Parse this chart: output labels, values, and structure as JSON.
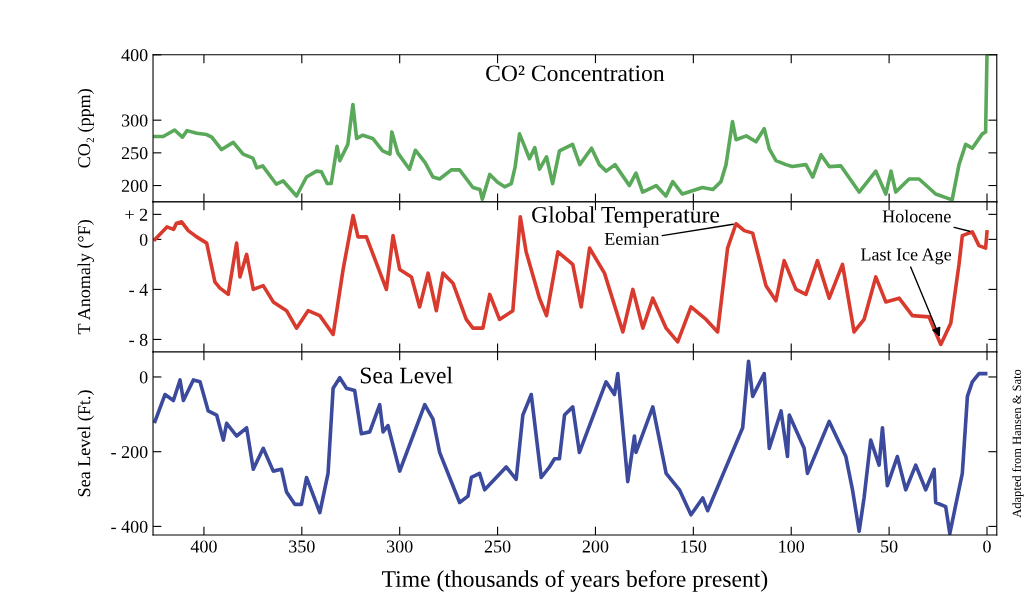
{
  "chart_data": [
    {
      "type": "line",
      "title": "CO² Concentration",
      "ylabel": "CO₂ (ppm)",
      "tick_labels": "y",
      "grid": false,
      "legend": false,
      "xlim": [
        426,
        -5
      ],
      "xticks": [
        400,
        350,
        300,
        250,
        200,
        150,
        100,
        50,
        0
      ],
      "ylim": [
        175,
        400
      ],
      "yticks": [
        200,
        250,
        300,
        400
      ],
      "series": [
        {
          "color": "#5aa85a",
          "x": [
            425,
            420.8,
            415,
            411,
            408.6,
            403.7,
            398.6,
            396,
            391,
            385,
            380,
            375,
            373,
            370,
            363,
            359.5,
            352.7,
            347.6,
            342.5,
            340,
            337,
            335,
            332,
            330.6,
            326.5,
            323.9,
            322,
            318.8,
            313.8,
            308.7,
            305,
            304,
            301,
            295,
            292,
            287,
            283,
            279.6,
            273.6,
            269.4,
            262.6,
            259,
            257.8,
            254,
            250,
            246.4,
            243,
            241,
            238.8,
            236.2,
            233.7,
            231,
            228.6,
            225,
            221.9,
            218.4,
            211.7,
            208,
            202,
            198,
            194.5,
            190,
            182.7,
            179.3,
            175.9,
            169,
            164,
            160.5,
            155.6,
            145.4,
            140,
            135.9,
            133.3,
            130,
            128.2,
            123,
            118,
            113.8,
            111.2,
            107.8,
            102.7,
            99.5,
            92.5,
            89,
            84.8,
            80.6,
            74.6,
            65.3,
            56.8,
            51.7,
            49,
            46.6,
            39.8,
            34.7,
            26.2,
            17.8,
            14.3,
            10.9,
            7.5,
            2.4,
            0.7,
            0
          ],
          "values": [
            275,
            275,
            285,
            274,
            284,
            280,
            278,
            274,
            255,
            266,
            248,
            242,
            227,
            230,
            202,
            207,
            184,
            213,
            222,
            221,
            203,
            203,
            260,
            238,
            263,
            324,
            272,
            277,
            272,
            253,
            248,
            282,
            250,
            225,
            254,
            235,
            213,
            210,
            224,
            224,
            197,
            194,
            179,
            217,
            205,
            198,
            203,
            229,
            279,
            260,
            241,
            258,
            225,
            244,
            203,
            253,
            263,
            232,
            257,
            232,
            222,
            232,
            200,
            219,
            190,
            200,
            184,
            206,
            187,
            197,
            194,
            206,
            232,
            298,
            270,
            276,
            267,
            287,
            256,
            238,
            232,
            229,
            232,
            213,
            247,
            229,
            230,
            190,
            222,
            187,
            222,
            190,
            210,
            210,
            187,
            178,
            232,
            263,
            257,
            279,
            282,
            400
          ]
        }
      ]
    },
    {
      "type": "line",
      "title": "Global Temperature",
      "ylabel": "T Anomaly (°F)",
      "tick_labels": "y",
      "grid": false,
      "legend": false,
      "xlim": [
        426,
        -5
      ],
      "xticks": [
        400,
        350,
        300,
        250,
        200,
        150,
        100,
        50,
        0
      ],
      "ylim": [
        -9,
        3
      ],
      "yticks": [
        {
          "value": 2,
          "label": "+ 2"
        },
        0,
        {
          "value": -4,
          "label": "- 4"
        },
        {
          "value": -8,
          "label": "- 8"
        }
      ],
      "annotations": [
        {
          "text": "Eemian",
          "x": 128.2,
          "y": 1.25
        },
        {
          "text": "Holocene",
          "x": 7.5,
          "y": 0.6
        },
        {
          "text": "Last Ice Age",
          "x": 23.6,
          "y": -8
        }
      ],
      "series": [
        {
          "color": "#d93a2e",
          "x": [
            425,
            418.9,
            415.5,
            414,
            411.4,
            408,
            403.7,
            398.6,
            394.4,
            391.8,
            387.6,
            383.3,
            381.6,
            378.2,
            374.8,
            369.7,
            364.6,
            357.8,
            352.7,
            346.8,
            340.8,
            334,
            328.9,
            323.8,
            321.3,
            317,
            306.8,
            303.4,
            300,
            294,
            289.8,
            285.5,
            281.3,
            277.9,
            272.8,
            266,
            262.6,
            257.5,
            254,
            249,
            242.2,
            238.4,
            235.4,
            228.6,
            225,
            219.2,
            211.6,
            207.3,
            203,
            195.4,
            186,
            180.9,
            175.8,
            170.7,
            163.9,
            158,
            151.2,
            143.5,
            137.6,
            132.5,
            128.2,
            124,
            119.7,
            112.9,
            107.8,
            103.6,
            97.6,
            92.5,
            86.6,
            80.6,
            73.8,
            67.9,
            62.8,
            56.8,
            51.7,
            44.9,
            38.1,
            29.6,
            23.6,
            18.5,
            14.3,
            12.6,
            7.5,
            4.1,
            0.7,
            0
          ],
          "values": [
            0,
            1.0,
            0.8,
            1.3,
            1.4,
            0.7,
            0.2,
            -0.3,
            -3.4,
            -3.9,
            -4.4,
            -0.3,
            -3.0,
            -1.2,
            -4.0,
            -3.7,
            -5.0,
            -5.7,
            -7.1,
            -5.7,
            -6.1,
            -7.6,
            -2.4,
            1.9,
            0.2,
            0.2,
            -4.0,
            0.3,
            -2.4,
            -3.0,
            -5.4,
            -2.7,
            -5.7,
            -2.7,
            -3.5,
            -6.4,
            -7.1,
            -7.1,
            -4.4,
            -6.4,
            -5.7,
            1.8,
            -1.0,
            -4.7,
            -6.1,
            -1.0,
            -2.0,
            -5.4,
            -0.7,
            -2.7,
            -7.4,
            -4.0,
            -7.1,
            -4.7,
            -7.1,
            -8.2,
            -5.4,
            -6.4,
            -7.4,
            -0.7,
            1.25,
            0.7,
            0.5,
            -3.7,
            -4.9,
            -1.7,
            -4.0,
            -4.4,
            -1.7,
            -4.7,
            -2.0,
            -7.4,
            -6.4,
            -3.0,
            -5.0,
            -4.7,
            -6.1,
            -6.2,
            -8.4,
            -6.7,
            -2.0,
            0.3,
            0.6,
            -0.5,
            -0.7,
            0.6
          ]
        }
      ]
    },
    {
      "type": "line",
      "title": "Sea Level",
      "ylabel": "Sea Level (Ft.)",
      "xlabel": "Time (thousands of years before present)",
      "grid": false,
      "legend": false,
      "xlim": [
        426,
        -5
      ],
      "xticks": [
        400,
        350,
        300,
        250,
        200,
        150,
        100,
        50,
        0
      ],
      "ylim": [
        -423,
        67
      ],
      "yticks": [
        0,
        {
          "value": -200,
          "label": "- 200"
        },
        {
          "value": -400,
          "label": "- 400"
        }
      ],
      "annotations": [
        "Adapted from Hansen & Sato"
      ],
      "series": [
        {
          "color": "#3b4a9c",
          "x": [
            425,
            419.9,
            415.6,
            412.2,
            410.5,
            405.4,
            402,
            397.8,
            393.5,
            390.1,
            388.4,
            383.3,
            378.2,
            374.8,
            369.7,
            364.6,
            360.4,
            357.8,
            353.6,
            350.2,
            347.6,
            340.8,
            336.6,
            334,
            330.6,
            327.2,
            323,
            319.6,
            315.3,
            310.2,
            308.5,
            306,
            300,
            287.2,
            283,
            279.6,
            269.4,
            265.1,
            263.4,
            259.2,
            256.6,
            245.6,
            240.5,
            237.1,
            232.8,
            227.7,
            223.5,
            220.9,
            218.4,
            215.8,
            211.6,
            208.2,
            194.6,
            190.3,
            188.6,
            183.5,
            180.1,
            179.3,
            170.7,
            163.9,
            157.1,
            151.2,
            145.2,
            142.7,
            124.8,
            121.8,
            119.7,
            113.8,
            111.2,
            105.2,
            101.9,
            101,
            93.4,
            91.7,
            80.6,
            72.1,
            68.7,
            65.3,
            62.8,
            59.4,
            55.1,
            53.4,
            50.9,
            45.8,
            41.5,
            36.4,
            31.3,
            27,
            26.2,
            21.1,
            19,
            12.6,
            10,
            7.5,
            4.1,
            0.7
          ],
          "values": [
            -119,
            -47,
            -63,
            -8,
            -63,
            -8,
            -13,
            -91,
            -102,
            -169,
            -124,
            -158,
            -136,
            -247,
            -191,
            -252,
            -247,
            -308,
            -341,
            -341,
            -269,
            -363,
            -258,
            -30,
            -2,
            -30,
            -36,
            -152,
            -147,
            -74,
            -147,
            -130,
            -252,
            -74,
            -113,
            -202,
            -336,
            -319,
            -269,
            -258,
            -302,
            -241,
            -274,
            -102,
            -47,
            -269,
            -241,
            -219,
            -219,
            -102,
            -80,
            -202,
            -13,
            -47,
            9,
            -280,
            -158,
            -202,
            -80,
            -258,
            -302,
            -369,
            -324,
            -358,
            -136,
            42,
            -52,
            9,
            -191,
            -91,
            -213,
            -102,
            -191,
            -258,
            -119,
            -213,
            -302,
            -413,
            -324,
            -169,
            -236,
            -136,
            -291,
            -213,
            -302,
            -236,
            -302,
            -247,
            -336,
            -347,
            -419,
            -258,
            -52,
            -13,
            9,
            9
          ]
        }
      ]
    }
  ]
}
